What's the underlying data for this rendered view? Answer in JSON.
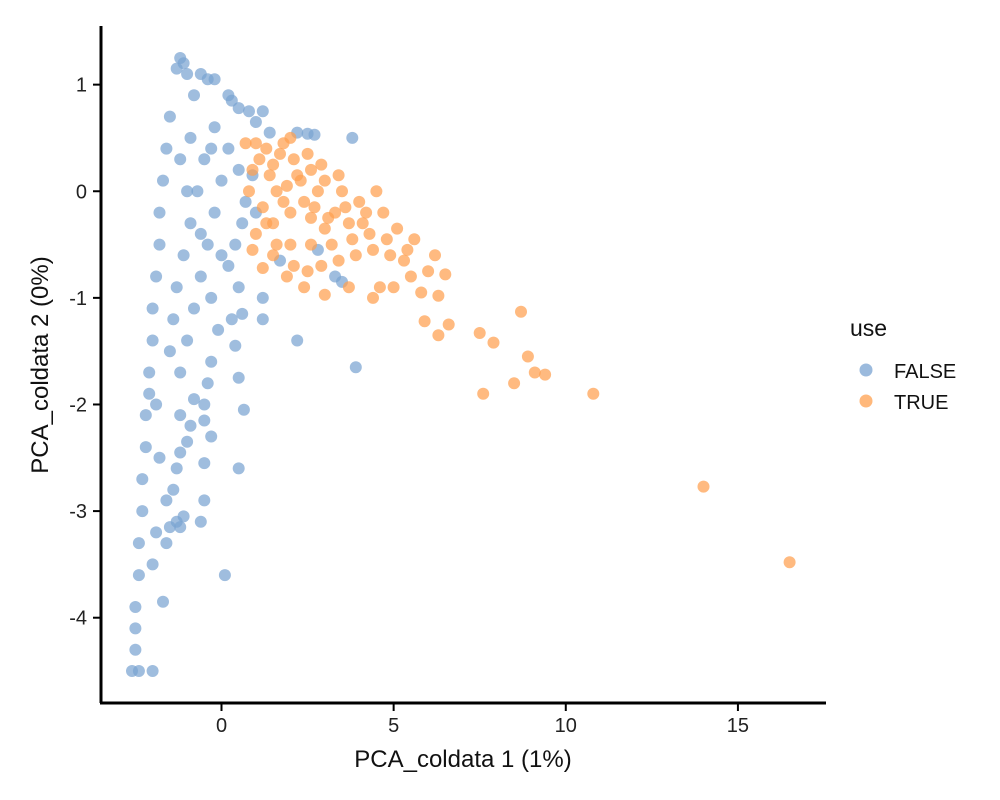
{
  "chart_data": {
    "type": "scatter",
    "xlabel": "PCA_coldata 1 (1%)",
    "ylabel": "PCA_coldata 2 (0%)",
    "xlim": [
      -3.5,
      17.5
    ],
    "ylim": [
      -4.8,
      1.55
    ],
    "xticks": [
      0,
      5,
      10,
      15
    ],
    "yticks": [
      1,
      0,
      -1,
      -2,
      -3,
      -4
    ],
    "grid": false,
    "legend": {
      "title": "use",
      "position": "right"
    },
    "series": [
      {
        "name": "FALSE",
        "color": "#7AA3D1",
        "points": [
          [
            -1.2,
            1.25
          ],
          [
            -1.1,
            1.2
          ],
          [
            -1.3,
            1.15
          ],
          [
            -1.0,
            1.1
          ],
          [
            -0.6,
            1.1
          ],
          [
            -0.4,
            1.05
          ],
          [
            -0.2,
            1.05
          ],
          [
            0.3,
            0.85
          ],
          [
            0.5,
            0.78
          ],
          [
            0.8,
            0.75
          ],
          [
            1.2,
            0.75
          ],
          [
            1.0,
            0.65
          ],
          [
            1.4,
            0.55
          ],
          [
            2.2,
            0.55
          ],
          [
            2.5,
            0.54
          ],
          [
            2.7,
            0.53
          ],
          [
            3.8,
            0.5
          ],
          [
            0.2,
            0.9
          ],
          [
            -0.8,
            0.9
          ],
          [
            -1.5,
            0.7
          ],
          [
            -1.6,
            0.4
          ],
          [
            -1.7,
            0.1
          ],
          [
            -1.8,
            -0.2
          ],
          [
            -1.8,
            -0.5
          ],
          [
            -1.9,
            -0.8
          ],
          [
            -2.0,
            -1.1
          ],
          [
            -2.0,
            -1.4
          ],
          [
            -2.1,
            -1.7
          ],
          [
            -2.1,
            -1.9
          ],
          [
            -2.2,
            -2.1
          ],
          [
            -2.2,
            -2.4
          ],
          [
            -2.3,
            -2.7
          ],
          [
            -2.3,
            -3.0
          ],
          [
            -2.4,
            -3.3
          ],
          [
            -2.4,
            -3.6
          ],
          [
            -2.5,
            -3.9
          ],
          [
            -2.5,
            -4.1
          ],
          [
            -2.5,
            -4.3
          ],
          [
            -2.4,
            -4.5
          ],
          [
            -2.6,
            -4.5
          ],
          [
            -2.0,
            -4.5
          ],
          [
            -1.7,
            -3.85
          ],
          [
            -1.6,
            -3.3
          ],
          [
            -1.5,
            -3.15
          ],
          [
            -1.3,
            -3.1
          ],
          [
            -1.1,
            -3.05
          ],
          [
            -0.6,
            -3.1
          ],
          [
            -0.5,
            -2.9
          ],
          [
            -1.4,
            -2.8
          ],
          [
            -1.3,
            -2.6
          ],
          [
            -1.2,
            -2.45
          ],
          [
            -1.0,
            -2.35
          ],
          [
            -0.9,
            -2.2
          ],
          [
            -0.5,
            -2.15
          ],
          [
            -0.3,
            -2.3
          ],
          [
            -0.5,
            -2.55
          ],
          [
            0.5,
            -2.6
          ],
          [
            0.1,
            -3.6
          ],
          [
            0.65,
            -2.05
          ],
          [
            -0.5,
            -2.0
          ],
          [
            -1.2,
            -2.1
          ],
          [
            -0.8,
            -1.95
          ],
          [
            -0.4,
            -1.8
          ],
          [
            0.5,
            -1.75
          ],
          [
            -0.3,
            -1.6
          ],
          [
            0.4,
            -1.45
          ],
          [
            -0.1,
            -1.3
          ],
          [
            0.3,
            -1.2
          ],
          [
            0.6,
            -1.15
          ],
          [
            1.2,
            -1.2
          ],
          [
            1.2,
            -1.0
          ],
          [
            2.2,
            -1.4
          ],
          [
            3.9,
            -1.65
          ],
          [
            0.5,
            -0.9
          ],
          [
            0.2,
            -0.7
          ],
          [
            0.4,
            -0.5
          ],
          [
            0.6,
            -0.3
          ],
          [
            0.7,
            -0.1
          ],
          [
            0.5,
            0.2
          ],
          [
            0.2,
            0.4
          ],
          [
            -0.2,
            0.6
          ],
          [
            -0.5,
            0.3
          ],
          [
            -0.7,
            0.0
          ],
          [
            -0.9,
            -0.3
          ],
          [
            -1.1,
            -0.6
          ],
          [
            -1.3,
            -0.9
          ],
          [
            -1.4,
            -1.2
          ],
          [
            -1.5,
            -1.5
          ],
          [
            -1.2,
            -1.7
          ],
          [
            -1.0,
            -1.4
          ],
          [
            -0.8,
            -1.1
          ],
          [
            -0.6,
            -0.8
          ],
          [
            -0.4,
            -0.5
          ],
          [
            -0.2,
            -0.2
          ],
          [
            0.0,
            0.1
          ],
          [
            -0.3,
            0.4
          ],
          [
            -0.9,
            0.5
          ],
          [
            -1.2,
            0.3
          ],
          [
            -1.0,
            0.0
          ],
          [
            -0.6,
            -0.4
          ],
          [
            -0.3,
            -1.0
          ],
          [
            0.0,
            -0.6
          ],
          [
            1.7,
            -0.65
          ],
          [
            2.8,
            -0.55
          ],
          [
            3.3,
            -0.8
          ],
          [
            3.5,
            -0.85
          ],
          [
            0.9,
            0.15
          ],
          [
            1.0,
            -0.2
          ],
          [
            -1.9,
            -2.0
          ],
          [
            -1.8,
            -2.5
          ],
          [
            -1.9,
            -3.2
          ],
          [
            -1.6,
            -2.9
          ],
          [
            -2.0,
            -3.5
          ],
          [
            -1.2,
            -3.15
          ]
        ]
      },
      {
        "name": "TRUE",
        "color": "#FFA04F",
        "points": [
          [
            16.5,
            -3.48
          ],
          [
            14.0,
            -2.77
          ],
          [
            10.8,
            -1.9
          ],
          [
            9.4,
            -1.72
          ],
          [
            9.1,
            -1.7
          ],
          [
            8.9,
            -1.55
          ],
          [
            8.5,
            -1.8
          ],
          [
            8.7,
            -1.13
          ],
          [
            7.6,
            -1.9
          ],
          [
            7.9,
            -1.42
          ],
          [
            7.5,
            -1.33
          ],
          [
            6.6,
            -1.25
          ],
          [
            6.3,
            -1.35
          ],
          [
            5.9,
            -1.22
          ],
          [
            5.8,
            -0.95
          ],
          [
            6.3,
            -0.98
          ],
          [
            6.5,
            -0.78
          ],
          [
            6.2,
            -0.6
          ],
          [
            6.0,
            -0.75
          ],
          [
            5.5,
            -0.8
          ],
          [
            5.0,
            -0.9
          ],
          [
            4.6,
            -0.9
          ],
          [
            4.4,
            -1.0
          ],
          [
            3.7,
            -0.9
          ],
          [
            3.0,
            -0.97
          ],
          [
            2.4,
            -0.9
          ],
          [
            1.9,
            -0.8
          ],
          [
            1.2,
            -0.72
          ],
          [
            1.5,
            -0.6
          ],
          [
            2.0,
            -0.5
          ],
          [
            2.6,
            -0.5
          ],
          [
            3.2,
            -0.5
          ],
          [
            3.8,
            -0.45
          ],
          [
            4.3,
            -0.4
          ],
          [
            4.8,
            -0.45
          ],
          [
            5.1,
            -0.35
          ],
          [
            5.4,
            -0.55
          ],
          [
            5.6,
            -0.45
          ],
          [
            4.7,
            -0.2
          ],
          [
            4.5,
            0.0
          ],
          [
            4.0,
            -0.1
          ],
          [
            3.5,
            0.0
          ],
          [
            3.0,
            0.1
          ],
          [
            2.6,
            0.2
          ],
          [
            2.1,
            0.3
          ],
          [
            1.7,
            0.35
          ],
          [
            1.3,
            0.4
          ],
          [
            1.0,
            0.45
          ],
          [
            2.0,
            0.5
          ],
          [
            0.7,
            0.45
          ],
          [
            0.9,
            0.2
          ],
          [
            0.8,
            0.0
          ],
          [
            1.2,
            -0.15
          ],
          [
            1.5,
            -0.3
          ],
          [
            2.0,
            -0.2
          ],
          [
            2.4,
            -0.1
          ],
          [
            2.8,
            0.0
          ],
          [
            3.3,
            -0.2
          ],
          [
            3.7,
            -0.3
          ],
          [
            4.2,
            -0.2
          ],
          [
            1.4,
            0.15
          ],
          [
            1.9,
            0.05
          ],
          [
            2.3,
            0.1
          ],
          [
            2.6,
            -0.25
          ],
          [
            3.0,
            -0.35
          ],
          [
            1.0,
            -0.4
          ],
          [
            0.9,
            -0.55
          ],
          [
            1.6,
            0.0
          ],
          [
            1.8,
            -0.1
          ],
          [
            2.2,
            0.15
          ],
          [
            2.7,
            -0.15
          ],
          [
            3.1,
            -0.25
          ],
          [
            3.6,
            -0.15
          ],
          [
            4.1,
            -0.3
          ],
          [
            4.4,
            -0.55
          ],
          [
            4.9,
            -0.6
          ],
          [
            5.3,
            -0.65
          ],
          [
            3.9,
            -0.6
          ],
          [
            3.4,
            -0.65
          ],
          [
            2.9,
            -0.7
          ],
          [
            2.5,
            -0.75
          ],
          [
            2.1,
            -0.7
          ],
          [
            1.6,
            -0.5
          ],
          [
            1.3,
            -0.3
          ],
          [
            1.1,
            0.3
          ],
          [
            1.5,
            0.25
          ],
          [
            1.8,
            0.45
          ],
          [
            2.5,
            0.35
          ],
          [
            2.9,
            0.25
          ],
          [
            3.4,
            0.15
          ]
        ]
      }
    ]
  }
}
